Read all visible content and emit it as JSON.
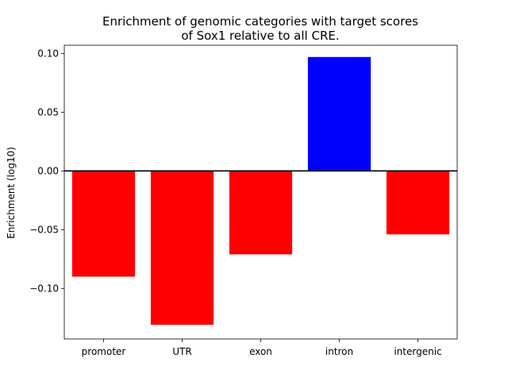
{
  "chart_data": {
    "type": "bar",
    "title_lines": [
      "Enrichment of genomic categories with target scores",
      "of Sox1 relative to all CRE."
    ],
    "xlabel": "",
    "ylabel": "Enrichment (log10)",
    "categories": [
      "promoter",
      "UTR",
      "exon",
      "intron",
      "intergenic"
    ],
    "values": [
      -0.09,
      -0.131,
      -0.071,
      0.097,
      -0.054
    ],
    "bar_colors": [
      "#ff0000",
      "#ff0000",
      "#ff0000",
      "#0000ff",
      "#ff0000"
    ],
    "positive_color": "#0000ff",
    "negative_color": "#ff0000",
    "ylim": [
      -0.143,
      0.107
    ],
    "yticks": [
      -0.1,
      -0.05,
      0.0,
      0.05,
      0.1
    ],
    "ytick_labels": [
      "−0.10",
      "−0.05",
      "0.00",
      "0.05",
      "0.10"
    ],
    "zero_line": true,
    "grid": false,
    "legend": "none"
  }
}
